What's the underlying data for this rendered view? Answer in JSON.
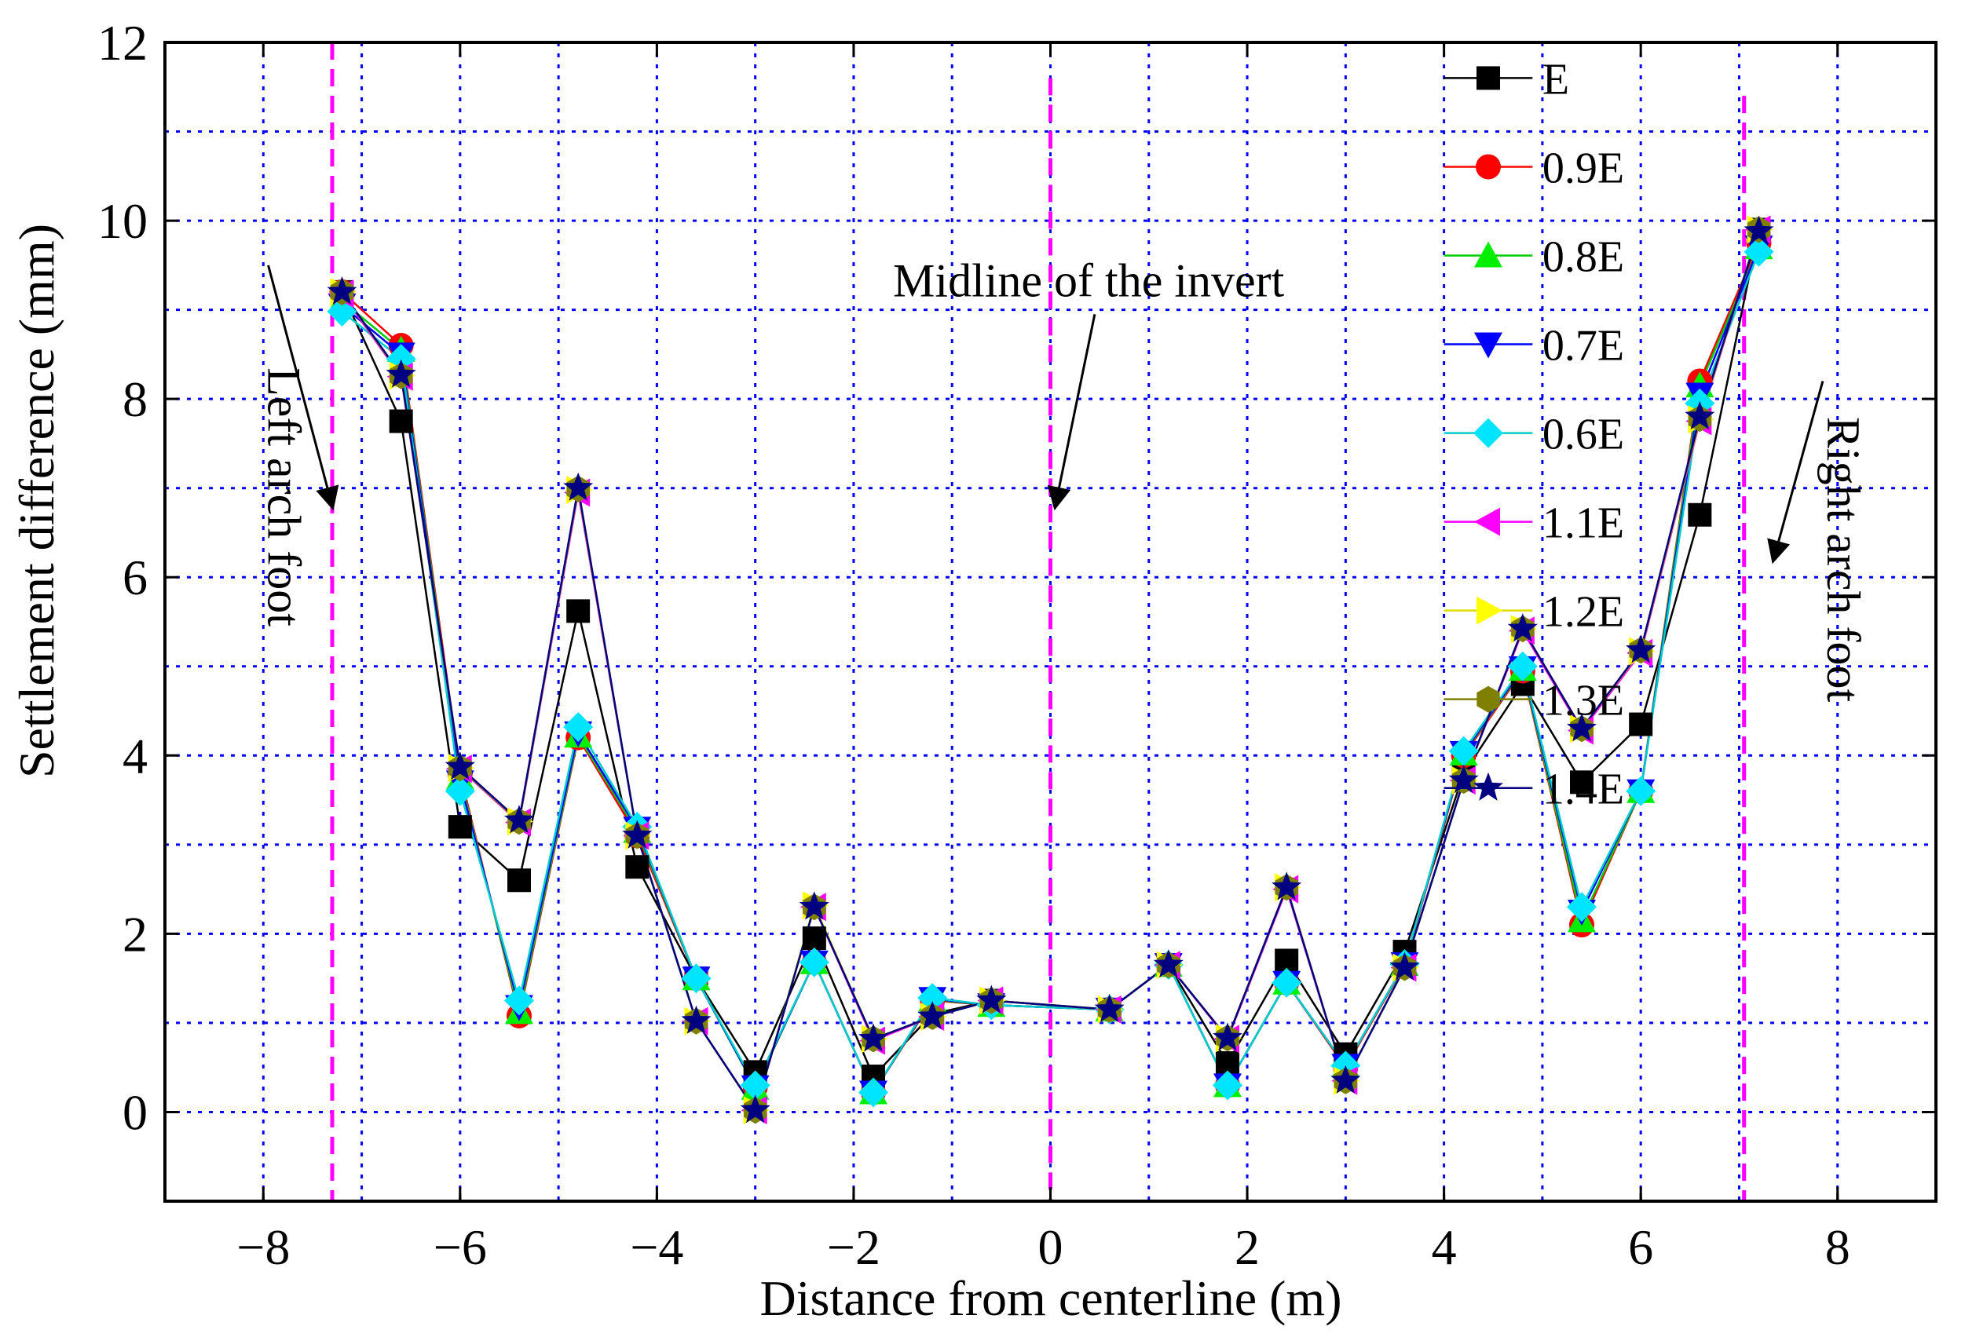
{
  "chart_data": {
    "type": "line",
    "title": "",
    "xlabel": "Distance from centerline (m)",
    "ylabel": "Settlement difference (mm)",
    "xlim": [
      -9,
      9
    ],
    "ylim": [
      -1,
      12
    ],
    "x_ticks": [
      -8,
      -6,
      -4,
      -2,
      0,
      2,
      4,
      6,
      8
    ],
    "x_tick_labels": [
      "−8",
      "−6",
      "−4",
      "−2",
      "0",
      "2",
      "4",
      "6",
      "8"
    ],
    "y_ticks": [
      0,
      2,
      4,
      6,
      8,
      10,
      12
    ],
    "y_tick_labels": [
      "0",
      "2",
      "4",
      "6",
      "8",
      "10",
      "12"
    ],
    "grid": true,
    "legend_position": "top-right",
    "x": [
      -7.2,
      -6.6,
      -6.0,
      -5.4,
      -4.8,
      -4.2,
      -3.6,
      -3.0,
      -2.4,
      -1.8,
      -1.2,
      -0.6,
      0.6,
      1.2,
      1.8,
      2.4,
      3.0,
      3.6,
      4.2,
      4.8,
      5.4,
      6.0,
      6.6,
      7.2
    ],
    "series": [
      {
        "name": "E",
        "color": "#000000",
        "line_color": "#000000",
        "marker": "square",
        "values": [
          9.2,
          7.75,
          3.2,
          2.6,
          5.62,
          2.75,
          1.5,
          0.45,
          1.95,
          0.4,
          1.1,
          1.25,
          1.15,
          1.65,
          0.55,
          1.7,
          0.65,
          1.8,
          3.8,
          4.8,
          3.7,
          4.35,
          6.7,
          9.9
        ]
      },
      {
        "name": "0.9E",
        "color": "#ff0000",
        "line_color": "#ff0000",
        "marker": "circle",
        "values": [
          9.2,
          8.6,
          3.8,
          1.08,
          4.2,
          3.1,
          1.5,
          0.28,
          1.68,
          0.22,
          1.25,
          1.2,
          1.15,
          1.65,
          0.3,
          1.45,
          0.5,
          1.65,
          4.0,
          4.95,
          2.1,
          3.6,
          8.2,
          9.75
        ]
      },
      {
        "name": "0.8E",
        "color": "#00ee00",
        "line_color": "#00cc00",
        "marker": "triangle-up",
        "values": [
          9.1,
          8.55,
          3.75,
          1.12,
          4.22,
          3.15,
          1.5,
          0.27,
          1.68,
          0.22,
          1.26,
          1.2,
          1.15,
          1.65,
          0.3,
          1.45,
          0.52,
          1.66,
          4.02,
          4.97,
          2.15,
          3.6,
          8.15,
          9.7
        ]
      },
      {
        "name": "0.7E",
        "color": "#0000ff",
        "line_color": "#0000ff",
        "marker": "triangle-down",
        "values": [
          9.05,
          8.5,
          3.7,
          1.18,
          4.25,
          3.18,
          1.5,
          0.28,
          1.68,
          0.22,
          1.27,
          1.2,
          1.15,
          1.65,
          0.3,
          1.45,
          0.52,
          1.66,
          4.03,
          4.98,
          2.25,
          3.6,
          8.05,
          9.7
        ]
      },
      {
        "name": "0.6E",
        "color": "#00e5ff",
        "line_color": "#00cccc",
        "marker": "diamond",
        "values": [
          8.98,
          8.45,
          3.6,
          1.25,
          4.32,
          3.2,
          1.5,
          0.3,
          1.68,
          0.22,
          1.28,
          1.2,
          1.15,
          1.65,
          0.3,
          1.45,
          0.52,
          1.66,
          4.05,
          5.0,
          2.3,
          3.6,
          7.95,
          9.65
        ]
      },
      {
        "name": "1.1E",
        "color": "#ff00ff",
        "line_color": "#ff00ff",
        "marker": "triangle-left",
        "values": [
          9.18,
          8.25,
          3.85,
          3.25,
          6.95,
          3.1,
          1.02,
          0.02,
          2.3,
          0.8,
          1.07,
          1.25,
          1.15,
          1.65,
          0.82,
          2.5,
          0.35,
          1.62,
          3.72,
          5.4,
          4.28,
          5.15,
          7.75,
          9.9
        ]
      },
      {
        "name": "1.2E",
        "color": "#ffff00",
        "line_color": "#dddd00",
        "marker": "triangle-right",
        "values": [
          9.2,
          8.26,
          3.86,
          3.26,
          6.98,
          3.1,
          1.02,
          0.02,
          2.32,
          0.82,
          1.07,
          1.25,
          1.15,
          1.65,
          0.83,
          2.52,
          0.35,
          1.62,
          3.72,
          5.42,
          4.3,
          5.17,
          7.77,
          9.9
        ]
      },
      {
        "name": "1.3E",
        "color": "#808000",
        "line_color": "#808000",
        "marker": "hexagon",
        "values": [
          9.2,
          8.26,
          3.86,
          3.26,
          6.99,
          3.1,
          1.02,
          0.02,
          2.3,
          0.82,
          1.07,
          1.25,
          1.15,
          1.65,
          0.83,
          2.52,
          0.35,
          1.62,
          3.72,
          5.42,
          4.3,
          5.18,
          7.78,
          9.9
        ]
      },
      {
        "name": "1.4E",
        "color": "#000080",
        "line_color": "#000080",
        "marker": "star",
        "values": [
          9.2,
          8.27,
          3.87,
          3.27,
          7.0,
          3.1,
          1.02,
          0.02,
          2.3,
          0.82,
          1.07,
          1.25,
          1.15,
          1.65,
          0.83,
          2.52,
          0.35,
          1.62,
          3.72,
          5.42,
          4.3,
          5.18,
          7.8,
          9.88
        ]
      }
    ],
    "reference_lines": [
      {
        "name": "left-arch-foot",
        "x": -7.3,
        "y0": -1,
        "y1": 12,
        "color": "#ff00ff"
      },
      {
        "name": "midline",
        "x": 0.0,
        "y0": -1,
        "y1": 11.6,
        "color": "#ff00ff"
      },
      {
        "name": "right-arch-foot",
        "x": 7.05,
        "y0": -1,
        "y1": 11.4,
        "color": "#ff00ff"
      }
    ],
    "annotations": [
      {
        "name": "left-arch-foot",
        "text": "Left arch foot",
        "x": -7.95,
        "y": 9.1,
        "rotate": 90,
        "arrow_from": [
          -7.95,
          9.5
        ],
        "arrow_to": [
          -7.3,
          6.8
        ]
      },
      {
        "name": "midline",
        "text": "Midline of the invert",
        "x": -1.6,
        "y": 9.15,
        "rotate": 0,
        "arrow_from": [
          0.45,
          8.95
        ],
        "arrow_to": [
          0.05,
          6.8
        ]
      },
      {
        "name": "right-arch-foot",
        "text": "Right arch foot",
        "x": 7.9,
        "y": 8.4,
        "rotate": 90,
        "arrow_from": [
          7.85,
          8.2
        ],
        "arrow_to": [
          7.35,
          6.2
        ]
      }
    ]
  }
}
